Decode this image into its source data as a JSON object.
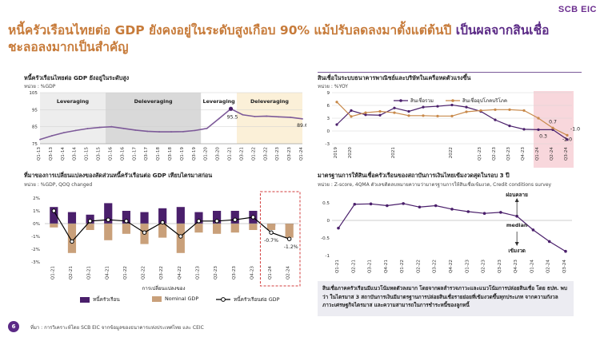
{
  "brand": "SCB EIC",
  "headline": {
    "part1": "หนี้ครัวเรือนไทยต่อ GDP ยังคงอยู่ในระดับสูงเกือบ 90% แม้ปรับลดลงมาตั้งแต่ต้นปี",
    "part2": "เป็นผลจากสินเชื่อ",
    "line2": "ชะลอลงมากเป็นสำคัญ"
  },
  "panels": {
    "tl": {
      "title": "หนี้ครัวเรือนไทยต่อ GDP ยังอยู่ในระดับสูง",
      "unit": "หน่วย : %GDP"
    },
    "tr": {
      "title": "สินเชื่อในระบบธนาคารพาณิชย์และบริษัทในเครือหดตัวแรงขึ้น",
      "unit": "หน่วย : %YOY"
    },
    "bl": {
      "title": "ที่มาของการเปลี่ยนแปลงของสัดส่วนหนี้ครัวเรือนต่อ GDP เทียบไตรมาสก่อน",
      "unit": "หน่วย : %GDP, QOQ changed"
    },
    "br": {
      "title": "มาตรฐานการให้สินเชื่อครัวเรือนของสถาบันการเงินไทยเข้มงวดสุดในรอบ 3 ปี",
      "unit": "หน่วย : Z-score, 4QMA ตัวเลขติดลบหมายความว่ามาตรฐานการให้สินเชื่อเข้มงวด, Credit conditions survey"
    }
  },
  "note": "สินเชื่อภาคครัวเรือนมีแนวโน้มหดตัวลงมาก โดยจากผลสำรวจภาวะและแนวโน้มการปล่อยสินเชื่อ โดย ธปท. พบว่า ในไตรมาส 3 สถาบันการเงินมีมาตรฐานการปล่อยสินเชื่อรายย่อยที่เข้มงวดขึ้นทุกประเภท จากความกังวลภาวะเศรษฐกิจไตรมาส และความสามารถในการชำระหนี้ของลูกหนี้",
  "footer": "ที่มา : การวิเคราะห์โดย SCB EIC จากข้อมูลของธนาคารแห่งประเทศไทย และ CEIC",
  "page_number": "6",
  "colors": {
    "purple": "#4a1f6b",
    "tan": "#c9a07a",
    "orange": "#c8894a",
    "shade_gray": "#d9d9d9",
    "shade_cream": "#fbf0d8",
    "shade_pink": "#f8d7dc"
  },
  "chart_data": [
    {
      "type": "line",
      "ylim": [
        75,
        105
      ],
      "yticks": [
        75,
        85,
        95,
        105
      ],
      "categories": [
        "Q1-13",
        "Q3-13",
        "Q1-14",
        "Q3-14",
        "Q1-15",
        "Q3-15",
        "Q1-16",
        "Q3-16",
        "Q1-17",
        "Q3-17",
        "Q1-18",
        "Q3-18",
        "Q1-19",
        "Q3-19",
        "Q1-20",
        "Q3-20",
        "Q1-21",
        "Q3-21",
        "Q1-22",
        "Q3-22",
        "Q1-23",
        "Q3-23",
        "Q1-24"
      ],
      "values": [
        77.5,
        79.7,
        81.5,
        82.8,
        83.9,
        84.6,
        85.0,
        84.0,
        83.0,
        82.3,
        82.0,
        82.0,
        82.1,
        82.8,
        84.0,
        89.7,
        95.5,
        92.0,
        91.0,
        91.2,
        90.8,
        90.5,
        89.6
      ],
      "regions": [
        {
          "label": "Leveraging",
          "from": "Q1-13",
          "to": "Q3-15"
        },
        {
          "label": "Deleveraging",
          "from": "Q1-16",
          "to": "Q3-19"
        },
        {
          "label": "Leveraging",
          "from": "Q1-20",
          "to": "Q1-21"
        },
        {
          "label": "Deleveraging",
          "from": "Q3-21",
          "to": "Q1-24"
        }
      ],
      "annotations": [
        {
          "label": "95.5"
        },
        {
          "label": "89.6"
        }
      ]
    },
    {
      "type": "line",
      "ylim": [
        -3,
        9
      ],
      "yticks": [
        -3,
        0,
        3,
        6,
        9
      ],
      "categories": [
        "2019",
        "2020",
        "Q1-21",
        "Q2-21",
        "Q3-21",
        "Q4-21",
        "Q1-22",
        "Q2-22",
        "Q3-22",
        "Q4-22",
        "Q1-23",
        "Q2-23",
        "Q3-23",
        "Q4-23",
        "Q1-24",
        "Q2-24",
        "Q3-24"
      ],
      "x_labels": [
        "2019",
        "2020",
        "2021",
        "2022",
        "Q1-23",
        "Q2-23",
        "Q3-23",
        "Q4-23",
        "Q1-24",
        "Q2-24",
        "Q3-24"
      ],
      "series": [
        {
          "name": "สินเชื่อรวม",
          "values": [
            1.5,
            4.8,
            3.8,
            3.7,
            5.4,
            4.6,
            5.6,
            5.8,
            6.1,
            5.6,
            4.6,
            2.6,
            1.2,
            0.4,
            0.3,
            0.3,
            -2.0
          ]
        },
        {
          "name": "สินเชื่ออุปโภคบริโภค",
          "values": [
            6.8,
            3.4,
            4.3,
            4.6,
            4.3,
            3.6,
            3.6,
            3.5,
            3.5,
            4.5,
            4.8,
            5.0,
            5.0,
            4.8,
            3.0,
            0.7,
            -1.0
          ]
        }
      ],
      "highlight_from": "Q1-24",
      "annotations": [
        {
          "label": "0.3"
        },
        {
          "label": "0.7"
        },
        {
          "label": "-1.0"
        },
        {
          "label": "-2.0"
        }
      ]
    },
    {
      "type": "bar",
      "ylim": [
        -3,
        2
      ],
      "yticks": [
        "2%",
        "1%",
        "0%",
        "-1%",
        "-2%",
        "-3%"
      ],
      "categories": [
        "Q1-21",
        "Q2-21",
        "Q3-21",
        "Q4-21",
        "Q1-22",
        "Q2-22",
        "Q3-22",
        "Q4-22",
        "Q1-23",
        "Q2-23",
        "Q3-23",
        "Q4-23",
        "Q1-24",
        "Q2-24"
      ],
      "series": [
        {
          "name": "หนี้ครัวเรือน",
          "values": [
            1.3,
            0.9,
            0.7,
            1.6,
            1.0,
            0.9,
            1.2,
            1.3,
            0.9,
            1.0,
            1.0,
            1.0,
            -0.2,
            -0.1
          ]
        },
        {
          "name": "Nominal GDP",
          "values": [
            -0.3,
            -2.3,
            -0.5,
            -1.3,
            -0.8,
            -1.6,
            -1.1,
            -2.3,
            -0.7,
            -0.8,
            -0.7,
            -0.5,
            -0.5,
            -1.1
          ]
        },
        {
          "name": "หนี้ครัวเรือนต่อ GDP",
          "values": [
            1.0,
            -1.4,
            0.2,
            0.3,
            0.2,
            -0.7,
            0.1,
            -1.0,
            0.2,
            0.2,
            0.3,
            0.5,
            -0.7,
            -1.2
          ]
        }
      ],
      "xlabel": "การเปลี่ยนแปลงของ",
      "annotations": [
        {
          "label": "-0.7%"
        },
        {
          "label": "-1.2%"
        }
      ]
    },
    {
      "type": "line",
      "ylim": [
        -1,
        0.5
      ],
      "yticks": [
        "0.5",
        "0",
        "-0.5",
        "-1"
      ],
      "categories": [
        "Q1-21",
        "Q2-21",
        "Q3-21",
        "Q4-21",
        "Q1-22",
        "Q2-22",
        "Q3-22",
        "Q4-22",
        "Q1-23",
        "Q2-23",
        "Q3-23",
        "Q4-23",
        "Q1-24",
        "Q2-24",
        "Q3-24"
      ],
      "values": [
        -0.22,
        0.46,
        0.47,
        0.42,
        0.48,
        0.38,
        0.42,
        0.32,
        0.25,
        0.2,
        0.23,
        0.12,
        -0.27,
        -0.6,
        -0.88
      ],
      "annotations": [
        {
          "label": "ผ่อนคลาย"
        },
        {
          "label": "median"
        },
        {
          "label": "เข้มงวด"
        }
      ]
    }
  ]
}
